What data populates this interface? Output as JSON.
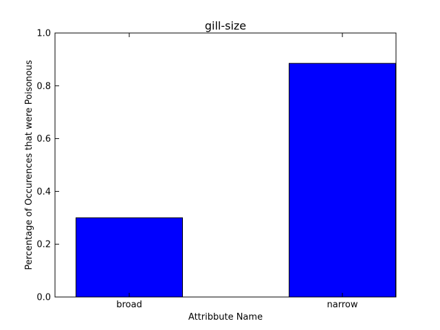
{
  "chart_data": {
    "type": "bar",
    "title": "gill-size",
    "xlabel": "Attribbute Name",
    "ylabel": "Percentage of Occurences that were Poisonous",
    "categories": [
      "broad",
      "narrow"
    ],
    "values": [
      0.3,
      0.885
    ],
    "ylim": [
      0.0,
      1.0
    ],
    "yticks": [
      "0.0",
      "0.2",
      "0.4",
      "0.6",
      "0.8",
      "1.0"
    ],
    "grid": false,
    "legend": "none",
    "colors": {
      "bar": "#0000ff",
      "edge": "#000000",
      "axes": "#000000",
      "background": "#ffffff"
    }
  }
}
